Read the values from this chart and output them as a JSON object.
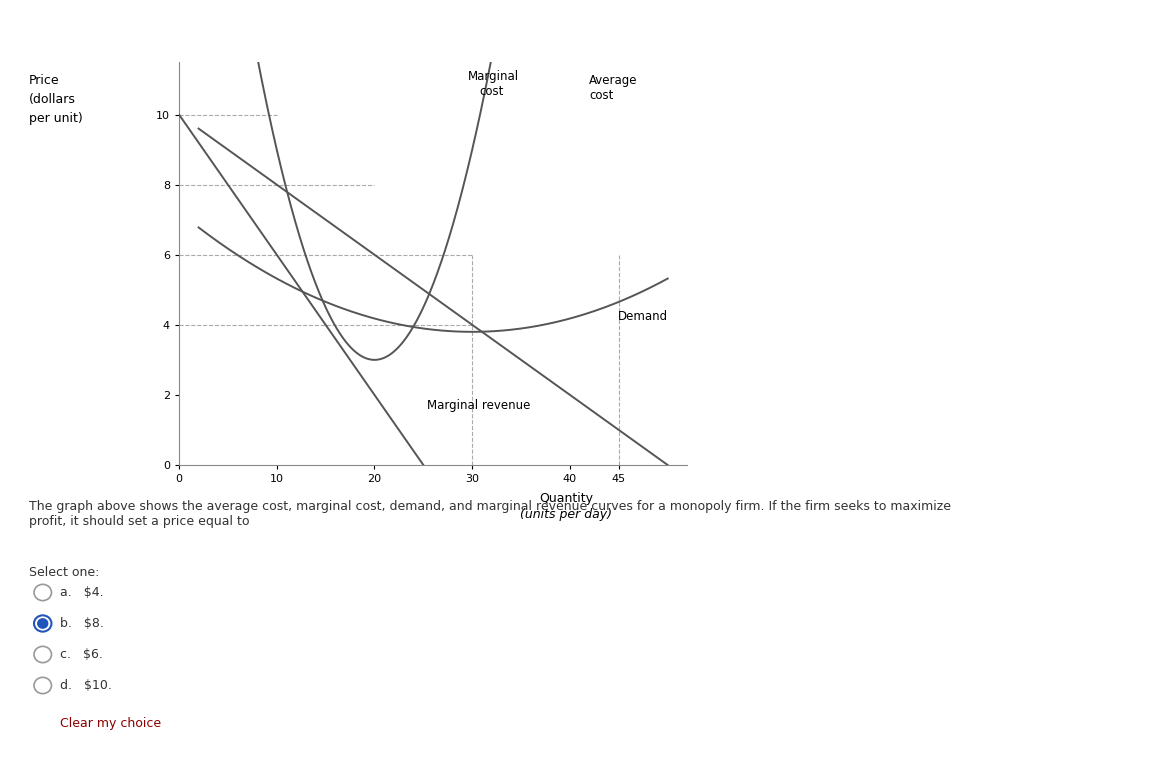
{
  "background_color": "#d6e8f0",
  "chart_bg": "#ffffff",
  "curve_color": "#555555",
  "dashed_color": "#aaaaaa",
  "question_text": "The graph above shows the average cost, marginal cost, demand, and marginal revenue curves for a monopoly firm. If the firm seeks to maximize\nprofit, it should set a price equal to",
  "select_one_text": "Select one:",
  "options": [
    {
      "label": "a.",
      "text": "$4.",
      "selected": false
    },
    {
      "label": "b.",
      "text": "$8.",
      "selected": true
    },
    {
      "label": "c.",
      "text": "$6.",
      "selected": false
    },
    {
      "label": "d.",
      "text": "$10.",
      "selected": false
    }
  ],
  "clear_text": "Clear my choice",
  "clear_color": "#8B0000",
  "radio_unsel_color": "#999999",
  "radio_sel_color": "#2255bb",
  "x_ticks": [
    0,
    10,
    20,
    30,
    40,
    45
  ],
  "y_ticks": [
    0,
    2,
    4,
    6,
    8,
    10
  ],
  "xlim": [
    0,
    52
  ],
  "ylim": [
    0,
    11.5
  ],
  "label_avg_cost": [
    "Average",
    "cost"
  ],
  "label_marginal_cost": [
    "Marginal",
    "cost"
  ],
  "label_demand": "Demand",
  "label_mr": "Marginal revenue"
}
